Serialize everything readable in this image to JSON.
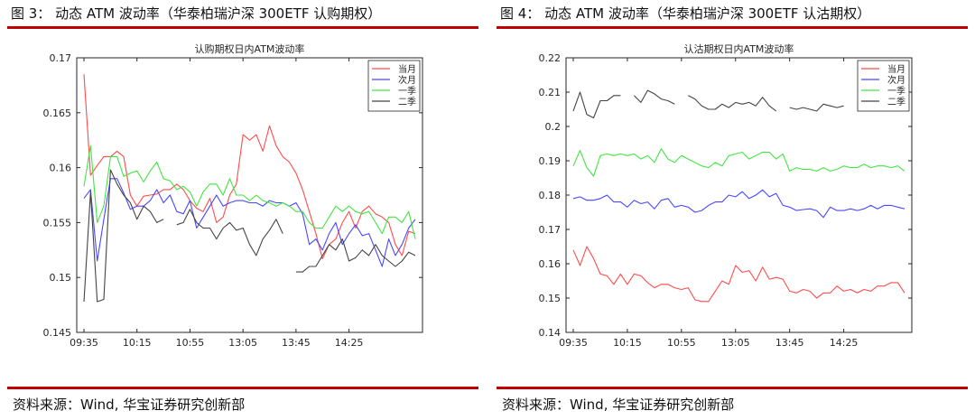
{
  "colors": {
    "accent": "#c00000",
    "series": [
      "#ff4b4b",
      "#4848ff",
      "#42e642",
      "#444444"
    ]
  },
  "source_text": "资料来源：Wind, 华宝证券研究创新部",
  "figures": [
    {
      "caption": "图 3： 动态 ATM 波动率（华泰柏瑞沪深 300ETF 认购期权）"
    },
    {
      "caption": "图 4： 动态 ATM 波动率（华泰柏瑞沪深 300ETF 认沽期权）"
    }
  ],
  "chart_data": [
    {
      "type": "line",
      "title": "认购期权日内ATM波动率",
      "xlabel": "",
      "ylabel": "",
      "x_ticks": [
        "09:35",
        "10:15",
        "10:55",
        "13:05",
        "13:45",
        "14:25"
      ],
      "ylim": [
        0.145,
        0.17
      ],
      "y_ticks": [
        "0.145",
        "0.15",
        "0.155",
        "0.16",
        "0.165",
        "0.17"
      ],
      "grid": false,
      "legend_position": "top-right",
      "series": [
        {
          "name": "当月",
          "color": "#ff4b4b",
          "values": [
            0.1685,
            0.1593,
            0.1602,
            0.161,
            0.161,
            0.1615,
            0.161,
            0.1575,
            0.1565,
            0.1574,
            0.1575,
            0.1576,
            0.158,
            0.158,
            0.1585,
            0.158,
            0.157,
            0.1563,
            0.156,
            0.1572,
            0.155,
            0.1555,
            0.1575,
            0.1585,
            0.163,
            0.1625,
            0.163,
            0.1615,
            0.1638,
            0.162,
            0.161,
            0.1605,
            0.1595,
            0.158,
            0.156,
            0.154,
            0.1517,
            0.153,
            0.1535,
            0.155,
            0.156,
            0.1545,
            0.156,
            0.1565,
            0.1558,
            0.1555,
            0.155,
            0.153,
            0.152,
            0.1542,
            0.154
          ]
        },
        {
          "name": "次月",
          "color": "#4848ff",
          "values": [
            0.1572,
            0.158,
            0.1515,
            0.1553,
            0.159,
            0.159,
            0.1577,
            0.1562,
            0.1565,
            0.1565,
            0.157,
            0.158,
            0.1568,
            0.1575,
            0.156,
            0.1558,
            0.157,
            0.1545,
            0.1555,
            0.1565,
            0.1575,
            0.1565,
            0.1568,
            0.157,
            0.157,
            0.1568,
            0.1568,
            0.1565,
            0.157,
            0.1568,
            0.1568,
            0.1565,
            0.1568,
            0.1558,
            0.153,
            0.1535,
            0.1525,
            0.154,
            0.155,
            0.153,
            0.154,
            0.1548,
            0.1538,
            0.154,
            0.1525,
            0.151,
            0.1535,
            0.152,
            0.153,
            0.1545,
            0.1553
          ]
        },
        {
          "name": "一季",
          "color": "#42e642",
          "values": [
            0.1583,
            0.162,
            0.155,
            0.1565,
            0.161,
            0.161,
            0.1592,
            0.1595,
            0.1597,
            0.1587,
            0.1597,
            0.1605,
            0.159,
            0.1588,
            0.158,
            0.1583,
            0.1578,
            0.1565,
            0.1578,
            0.1585,
            0.1585,
            0.1575,
            0.159,
            0.1575,
            0.1575,
            0.157,
            0.1575,
            0.157,
            0.1568,
            0.1565,
            0.1568,
            0.1565,
            0.156,
            0.156,
            0.155,
            0.1545,
            0.1545,
            0.1555,
            0.1565,
            0.156,
            0.1565,
            0.156,
            0.1558,
            0.156,
            0.155,
            0.154,
            0.1555,
            0.1555,
            0.155,
            0.156,
            0.1535
          ]
        },
        {
          "name": "二季",
          "color": "#444444",
          "values": [
            0.1478,
            0.1578,
            0.1478,
            0.148,
            0.1598,
            0.1585,
            0.1575,
            0.1568,
            0.1553,
            0.1565,
            0.156,
            0.155,
            0.1553,
            null,
            0.1548,
            0.155,
            0.1562,
            0.155,
            0.1545,
            0.1545,
            0.1535,
            0.1545,
            0.155,
            0.1543,
            0.1545,
            0.153,
            0.152,
            0.1535,
            0.1543,
            0.1553,
            0.154,
            null,
            0.1505,
            0.1505,
            0.151,
            0.151,
            0.152,
            0.153,
            0.1525,
            0.1535,
            0.1515,
            0.1518,
            0.1525,
            0.152,
            0.153,
            0.152,
            0.1515,
            0.151,
            0.1515,
            0.1523,
            0.152
          ]
        }
      ]
    },
    {
      "type": "line",
      "title": "认沽期权日内ATM波动率",
      "xlabel": "",
      "ylabel": "",
      "x_ticks": [
        "09:35",
        "10:15",
        "10:55",
        "13:05",
        "13:45",
        "14:25"
      ],
      "ylim": [
        0.14,
        0.22
      ],
      "y_ticks": [
        "0.14",
        "0.15",
        "0.16",
        "0.17",
        "0.18",
        "0.19",
        "0.2",
        "0.21",
        "0.22"
      ],
      "grid": false,
      "legend_position": "top-right",
      "series": [
        {
          "name": "当月",
          "color": "#ff4b4b",
          "values": [
            0.164,
            0.1595,
            0.165,
            0.1615,
            0.157,
            0.1565,
            0.154,
            0.157,
            0.154,
            0.157,
            0.1565,
            0.1545,
            0.153,
            0.154,
            0.154,
            0.153,
            0.1525,
            0.153,
            0.1495,
            0.149,
            0.149,
            0.152,
            0.155,
            0.154,
            0.1595,
            0.1575,
            0.158,
            0.155,
            0.159,
            0.1555,
            0.156,
            0.1555,
            0.152,
            0.1515,
            0.1525,
            0.152,
            0.15,
            0.1515,
            0.1515,
            0.1535,
            0.152,
            0.1525,
            0.1515,
            0.1525,
            0.152,
            0.1535,
            0.1535,
            0.1545,
            0.1545,
            0.1515
          ]
        },
        {
          "name": "次月",
          "color": "#4848ff",
          "values": [
            0.179,
            0.1795,
            0.1785,
            0.1785,
            0.179,
            0.18,
            0.178,
            0.178,
            0.1765,
            0.1785,
            0.1775,
            0.178,
            0.176,
            0.1785,
            0.179,
            0.1765,
            0.177,
            0.1765,
            0.175,
            0.1755,
            0.177,
            0.178,
            0.178,
            0.18,
            0.1795,
            0.181,
            0.179,
            0.18,
            0.1815,
            0.1795,
            0.1805,
            0.177,
            0.1765,
            0.1755,
            0.1758,
            0.176,
            0.1755,
            0.1735,
            0.1765,
            0.1755,
            0.1755,
            0.176,
            0.1755,
            0.176,
            0.177,
            0.176,
            0.177,
            0.177,
            0.1765,
            0.176
          ]
        },
        {
          "name": "一季",
          "color": "#42e642",
          "values": [
            0.1885,
            0.193,
            0.188,
            0.1855,
            0.1915,
            0.192,
            0.1915,
            0.192,
            0.1915,
            0.192,
            0.1905,
            0.1915,
            0.1895,
            0.1935,
            0.1905,
            0.1895,
            0.1915,
            0.1905,
            0.1895,
            0.1885,
            0.188,
            0.1895,
            0.1885,
            0.1915,
            0.192,
            0.1925,
            0.1905,
            0.1915,
            0.1925,
            0.1925,
            0.1905,
            0.192,
            0.187,
            0.188,
            0.1875,
            0.1875,
            0.187,
            0.188,
            0.187,
            0.1875,
            0.1885,
            0.188,
            0.188,
            0.189,
            0.188,
            0.1885,
            0.1885,
            0.188,
            0.1885,
            0.187
          ]
        },
        {
          "name": "二季",
          "color": "#444444",
          "values": [
            0.2045,
            0.21,
            0.2035,
            0.2025,
            0.2075,
            0.2075,
            0.209,
            0.209,
            null,
            0.209,
            0.207,
            0.2105,
            0.2095,
            0.208,
            0.2075,
            0.2065,
            null,
            0.209,
            0.208,
            0.206,
            0.205,
            0.205,
            0.2065,
            0.2055,
            0.207,
            0.2065,
            0.207,
            0.206,
            0.2085,
            0.206,
            0.2045,
            null,
            0.2055,
            0.205,
            0.2055,
            0.205,
            0.2045,
            0.2065,
            0.206,
            0.2055,
            0.206,
            null,
            0.206,
            0.206,
            0.206,
            0.2065,
            0.206,
            0.206,
            0.206,
            0.2065
          ]
        }
      ]
    }
  ]
}
